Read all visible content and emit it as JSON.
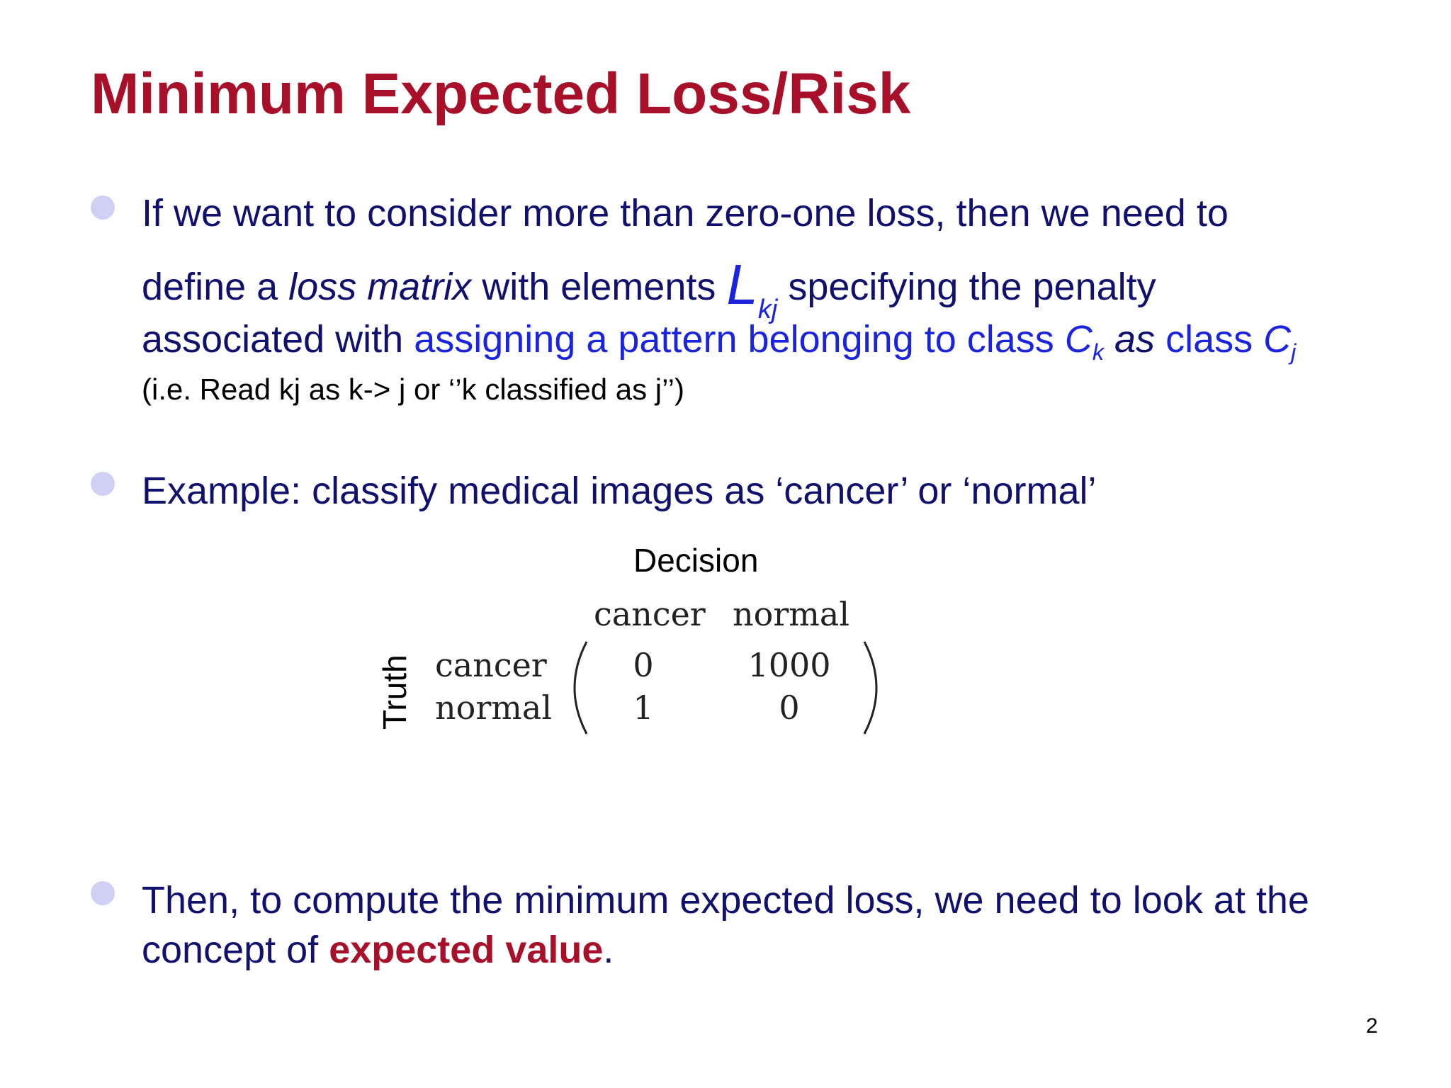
{
  "title": "Minimum Expected Loss/Risk",
  "bullet1": {
    "line1": "If we want to consider more than zero-one loss, then we need to",
    "line2_a": "define a ",
    "line2_b": "loss matrix",
    "line2_c": " with elements ",
    "L_symbol": "L",
    "L_subscript": "kj",
    "line2_d": " specifying the penalty",
    "line3_a": "associated with ",
    "line3_b": "assigning a pattern belonging to class ",
    "C_symbol_1": "C",
    "C_subscript_1": "k",
    "line3_c": " as",
    "line3_d": " class ",
    "C_symbol_2": "C",
    "C_subscript_2": "j",
    "note": "(i.e. Read kj as k-> j or ‘’k classified as j’’)"
  },
  "bullet2": {
    "text": "Example: classify medical images as ‘cancer’ or ‘normal’"
  },
  "matrix": {
    "decision_label": "Decision",
    "truth_label": "Truth",
    "col_labels": [
      "cancer",
      "normal"
    ],
    "row_labels": [
      "cancer",
      "normal"
    ],
    "values": [
      [
        "0",
        "1000"
      ],
      [
        "1",
        "0"
      ]
    ]
  },
  "bullet3": {
    "line1": "Then, to compute the minimum expected loss, we need to look at the",
    "line2_a": "concept of ",
    "line2_b": "expected value",
    "line2_c": "."
  },
  "page_number": "2"
}
